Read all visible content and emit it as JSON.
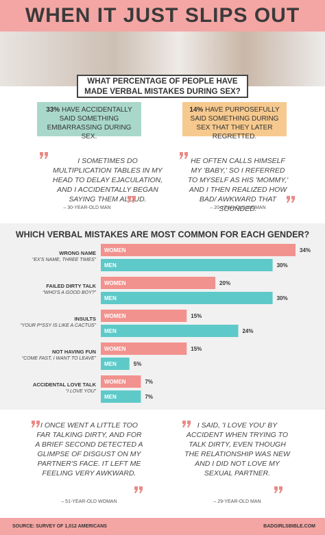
{
  "header": {
    "title": "WHEN IT JUST SLIPS OUT",
    "question": "WHAT PERCENTAGE OF PEOPLE HAVE MADE VERBAL MISTAKES DURING SEX?"
  },
  "stats": [
    {
      "percent": "33%",
      "text": "HAVE ACCIDENTALLY SAID SOMETHING EMBARRASSING DURING SEX."
    },
    {
      "percent": "14%",
      "text": "HAVE PURPOSEFULLY SAID SOMETHING DURING SEX THAT THEY LATER REGRETTED."
    }
  ],
  "quotes": [
    {
      "text": "I SOMETIMES DO MULTIPLICATION TABLES IN MY HEAD TO DELAY EJACULATION, AND I ACCIDENTALLY BEGAN SAYING THEM ALOUD.",
      "author": "– 30-YEAR-OLD MAN"
    },
    {
      "text": "HE OFTEN CALLS HIMSELF MY 'BABY,' SO I REFERRED TO MYSELF AS HIS 'MOMMY,' AND I THEN REALIZED HOW BAD/ AWKWARD THAT SOUNDED.",
      "author": "– 20-YEAR-OLD WOMAN"
    },
    {
      "text": "I ONCE WENT A LITTLE TOO FAR TALKING DIRTY, AND FOR A BRIEF SECOND DETECTED A GLIMPSE OF DISGUST ON MY PARTNER'S FACE. IT LEFT ME FEELING VERY AWKWARD.",
      "author": "– 51-YEAR-OLD WOMAN"
    },
    {
      "text": "I SAID, 'I LOVE YOU' BY ACCIDENT WHEN TRYING TO TALK DIRTY, EVEN THOUGH THE RELATIONSHIP WAS NEW AND I DID NOT LOVE MY SEXUAL PARTNER.",
      "author": "– 29-YEAR-OLD MAN"
    }
  ],
  "chart_data": {
    "type": "bar",
    "orientation": "horizontal",
    "title": "WHICH VERBAL MISTAKES ARE MOST COMMON FOR EACH GENDER?",
    "categories": [
      "WRONG NAME",
      "FAILED DIRTY TALK",
      "INSULTS",
      "NOT HAVING FUN",
      "ACCIDENTAL LOVE TALK"
    ],
    "category_examples": [
      "“EX'S NAME, THREE TIMES”",
      "“WHO'S A GOOD BOY?”",
      "“YOUR P*SSY IS LIKE A CACTUS”",
      "“COME FAST, I WANT TO LEAVE”",
      "“I LOVE YOU”"
    ],
    "series": [
      {
        "name": "WOMEN",
        "color": "#f2928e",
        "values": [
          34,
          20,
          15,
          15,
          7
        ],
        "value_labels": [
          "34%",
          "20%",
          "15%",
          "15%",
          "7%"
        ]
      },
      {
        "name": "MEN",
        "color": "#5ec9c9",
        "values": [
          30,
          30,
          24,
          5,
          7
        ],
        "value_labels": [
          "30%",
          "30%",
          "24%",
          "5%",
          "7%"
        ]
      }
    ]
  },
  "footer": {
    "source": "SOURCE: SURVEY OF 1,012 AMERICANS",
    "site": "BADGIRLSBIBLE.COM"
  }
}
